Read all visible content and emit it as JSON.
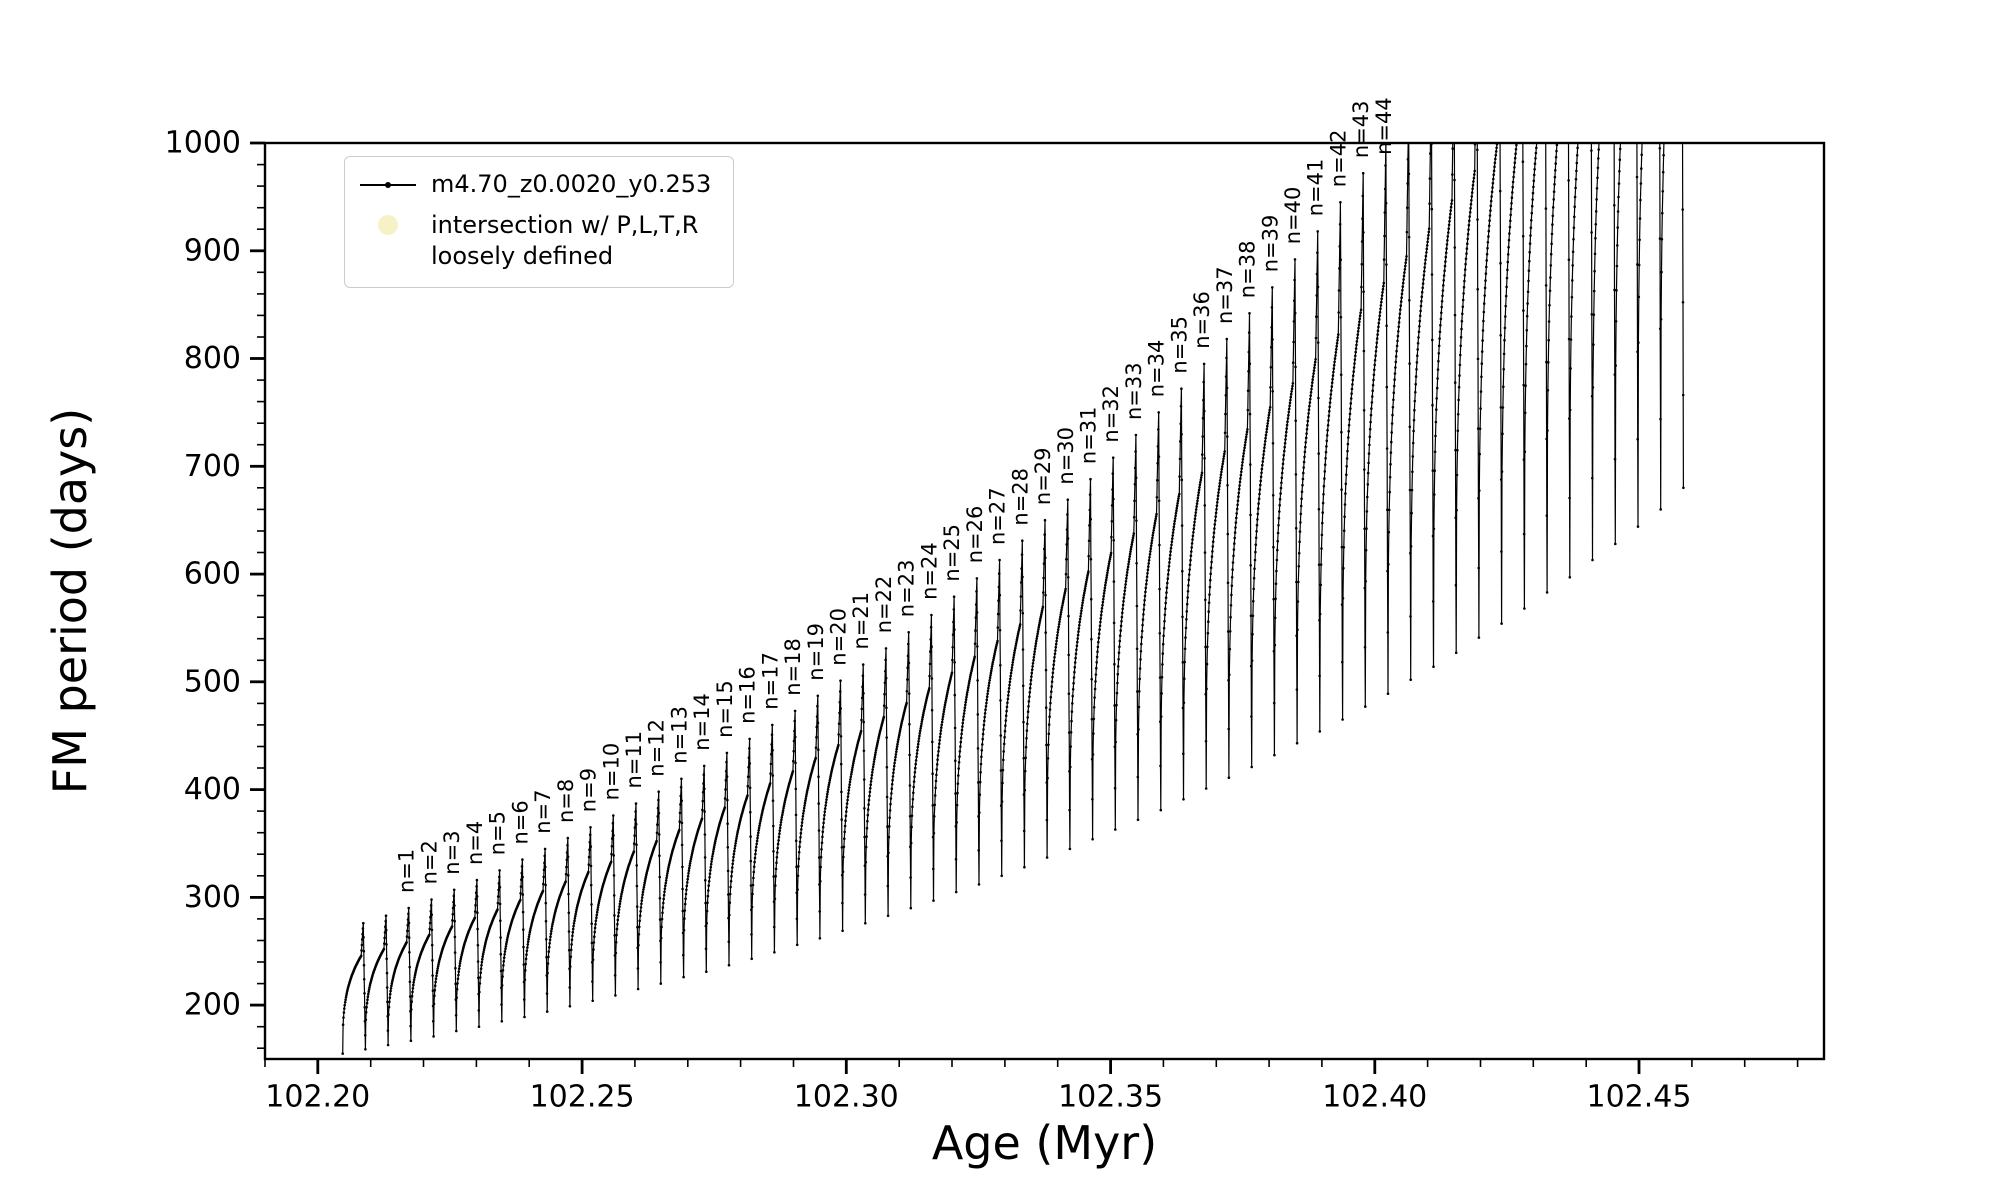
{
  "figure": {
    "background": "#ffffff"
  },
  "chart_data": {
    "type": "line",
    "title": "",
    "xlabel": "Age (Myr)",
    "ylabel": "FM period (days)",
    "xlim": [
      102.19,
      102.485
    ],
    "ylim": [
      150,
      1000
    ],
    "grid": false,
    "series_color": "#000000",
    "xticks": {
      "values": [
        102.2,
        102.25,
        102.3,
        102.35,
        102.4,
        102.45
      ],
      "labels": [
        "102.20",
        "102.25",
        "102.30",
        "102.35",
        "102.40",
        "102.45"
      ],
      "minor_step": 0.01
    },
    "yticks": {
      "values": [
        200,
        300,
        400,
        500,
        600,
        700,
        800,
        900,
        1000
      ],
      "labels": [
        "200",
        "300",
        "400",
        "500",
        "600",
        "700",
        "800",
        "900",
        "1000"
      ],
      "minor_step": 20
    },
    "legend": {
      "position": "upper-left",
      "entries": [
        {
          "marker": "line-dot",
          "color": "#000000",
          "label": "m4.70_z0.0020_y0.253"
        },
        {
          "marker": "circle",
          "color": "#f0e68c",
          "opacity": 0.5,
          "label_line1": "intersection w/ P,L,T,R",
          "label_line2": "loosely defined"
        }
      ]
    },
    "annotation_prefix": "n=",
    "model": {
      "rise_span": 0.0039,
      "spike_span": 0.0004,
      "drop_span": 0.0004,
      "shoulder_frac": 0.75,
      "rise_exponent": 0.32
    },
    "cycles": [
      {
        "label": null,
        "peak_age": 102.2086,
        "base": 155,
        "peak": 276
      },
      {
        "label": null,
        "peak_age": 102.2129,
        "base": 159,
        "peak": 283
      },
      {
        "label": "n=1",
        "peak_age": 102.2172,
        "base": 163,
        "peak": 290
      },
      {
        "label": "n=2",
        "peak_age": 102.2215,
        "base": 167,
        "peak": 298
      },
      {
        "label": "n=3",
        "peak_age": 102.2258,
        "base": 171,
        "peak": 307
      },
      {
        "label": "n=4",
        "peak_age": 102.2301,
        "base": 176,
        "peak": 316
      },
      {
        "label": "n=5",
        "peak_age": 102.2344,
        "base": 180,
        "peak": 325
      },
      {
        "label": "n=6",
        "peak_age": 102.2387,
        "base": 185,
        "peak": 335
      },
      {
        "label": "n=7",
        "peak_age": 102.243,
        "base": 189,
        "peak": 345
      },
      {
        "label": "n=8",
        "peak_age": 102.2473,
        "base": 194,
        "peak": 355
      },
      {
        "label": "n=9",
        "peak_age": 102.2516,
        "base": 199,
        "peak": 365
      },
      {
        "label": "n=10",
        "peak_age": 102.2559,
        "base": 204,
        "peak": 376
      },
      {
        "label": "n=11",
        "peak_age": 102.2602,
        "base": 209,
        "peak": 387
      },
      {
        "label": "n=12",
        "peak_age": 102.2645,
        "base": 215,
        "peak": 398
      },
      {
        "label": "n=13",
        "peak_age": 102.2688,
        "base": 220,
        "peak": 410
      },
      {
        "label": "n=14",
        "peak_age": 102.2731,
        "base": 226,
        "peak": 422
      },
      {
        "label": "n=15",
        "peak_age": 102.2774,
        "base": 231,
        "peak": 434
      },
      {
        "label": "n=16",
        "peak_age": 102.2817,
        "base": 237,
        "peak": 447
      },
      {
        "label": "n=17",
        "peak_age": 102.286,
        "base": 243,
        "peak": 460
      },
      {
        "label": "n=18",
        "peak_age": 102.2903,
        "base": 249,
        "peak": 473
      },
      {
        "label": "n=19",
        "peak_age": 102.2946,
        "base": 256,
        "peak": 487
      },
      {
        "label": "n=20",
        "peak_age": 102.2989,
        "base": 262,
        "peak": 501
      },
      {
        "label": "n=21",
        "peak_age": 102.3032,
        "base": 269,
        "peak": 516
      },
      {
        "label": "n=22",
        "peak_age": 102.3075,
        "base": 276,
        "peak": 531
      },
      {
        "label": "n=23",
        "peak_age": 102.3118,
        "base": 283,
        "peak": 546
      },
      {
        "label": "n=24",
        "peak_age": 102.3161,
        "base": 290,
        "peak": 562
      },
      {
        "label": "n=25",
        "peak_age": 102.3204,
        "base": 297,
        "peak": 579
      },
      {
        "label": "n=26",
        "peak_age": 102.3247,
        "base": 305,
        "peak": 596
      },
      {
        "label": "n=27",
        "peak_age": 102.329,
        "base": 312,
        "peak": 613
      },
      {
        "label": "n=28",
        "peak_age": 102.3333,
        "base": 320,
        "peak": 631
      },
      {
        "label": "n=29",
        "peak_age": 102.3376,
        "base": 328,
        "peak": 650
      },
      {
        "label": "n=30",
        "peak_age": 102.3419,
        "base": 337,
        "peak": 669
      },
      {
        "label": "n=31",
        "peak_age": 102.3462,
        "base": 345,
        "peak": 688
      },
      {
        "label": "n=32",
        "peak_age": 102.3505,
        "base": 354,
        "peak": 708
      },
      {
        "label": "n=33",
        "peak_age": 102.3548,
        "base": 363,
        "peak": 729
      },
      {
        "label": "n=34",
        "peak_age": 102.3591,
        "base": 372,
        "peak": 750
      },
      {
        "label": "n=35",
        "peak_age": 102.3634,
        "base": 381,
        "peak": 772
      },
      {
        "label": "n=36",
        "peak_age": 102.3677,
        "base": 391,
        "peak": 795
      },
      {
        "label": "n=37",
        "peak_age": 102.372,
        "base": 401,
        "peak": 818
      },
      {
        "label": "n=38",
        "peak_age": 102.3763,
        "base": 411,
        "peak": 842
      },
      {
        "label": "n=39",
        "peak_age": 102.3806,
        "base": 421,
        "peak": 866
      },
      {
        "label": "n=40",
        "peak_age": 102.3849,
        "base": 432,
        "peak": 892
      },
      {
        "label": "n=41",
        "peak_age": 102.3892,
        "base": 443,
        "peak": 918
      },
      {
        "label": "n=42",
        "peak_age": 102.3935,
        "base": 454,
        "peak": 945
      },
      {
        "label": "n=43",
        "peak_age": 102.3978,
        "base": 465,
        "peak": 972
      },
      {
        "label": "n=44",
        "peak_age": 102.4021,
        "base": 477,
        "peak": 1001
      },
      {
        "label": null,
        "peak_age": 102.4064,
        "base": 489,
        "peak": 1030
      },
      {
        "label": null,
        "peak_age": 102.4107,
        "base": 502,
        "peak": 1060
      },
      {
        "label": null,
        "peak_age": 102.415,
        "base": 514,
        "peak": 1091
      },
      {
        "label": null,
        "peak_age": 102.4193,
        "base": 527,
        "peak": 1123
      },
      {
        "label": null,
        "peak_age": 102.4236,
        "base": 541,
        "peak": 1156
      },
      {
        "label": null,
        "peak_age": 102.4279,
        "base": 554,
        "peak": 1190
      },
      {
        "label": null,
        "peak_age": 102.4322,
        "base": 568,
        "peak": 1224
      },
      {
        "label": null,
        "peak_age": 102.4365,
        "base": 583,
        "peak": 1260
      },
      {
        "label": null,
        "peak_age": 102.4408,
        "base": 597,
        "peak": 1297
      },
      {
        "label": null,
        "peak_age": 102.4451,
        "base": 613,
        "peak": 1335
      },
      {
        "label": null,
        "peak_age": 102.4494,
        "base": 628,
        "peak": 1374
      },
      {
        "label": null,
        "peak_age": 102.4537,
        "base": 644,
        "peak": 1414
      },
      {
        "label": null,
        "peak_age": 102.458,
        "base": 660,
        "peak": 1455
      }
    ]
  }
}
